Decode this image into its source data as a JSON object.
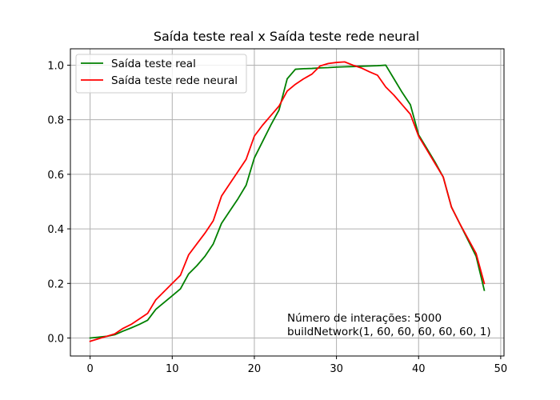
{
  "chart_data": {
    "type": "line",
    "title": "Saída teste real x Saída teste rede neural",
    "xlabel": "",
    "ylabel": "",
    "xlim": [
      -2.4,
      50.4
    ],
    "ylim": [
      -0.066,
      1.06
    ],
    "xticks": [
      0,
      10,
      20,
      30,
      40,
      50
    ],
    "yticks": [
      0.0,
      0.2,
      0.4,
      0.6,
      0.8,
      1.0
    ],
    "xtick_labels": [
      "0",
      "10",
      "20",
      "30",
      "40",
      "50"
    ],
    "ytick_labels": [
      "0.0",
      "0.2",
      "0.4",
      "0.6",
      "0.8",
      "1.0"
    ],
    "grid": true,
    "legend_position": "top-left",
    "annotations": [
      "Número de interações: 5000",
      "buildNetwork(1, 60, 60, 60, 60, 60, 1)"
    ],
    "series": [
      {
        "name": "Saída teste real",
        "color": "#008000",
        "x": [
          0,
          1,
          2,
          3,
          4,
          5,
          6,
          7,
          8,
          9,
          10,
          11,
          12,
          13,
          14,
          15,
          16,
          17,
          18,
          19,
          20,
          21,
          22,
          23,
          24,
          25,
          26,
          27,
          28,
          29,
          30,
          31,
          32,
          33,
          34,
          35,
          36,
          37,
          38,
          39,
          40,
          41,
          42,
          43,
          44,
          45,
          46,
          47,
          48
        ],
        "y": [
          0.0,
          0.003,
          0.006,
          0.012,
          0.025,
          0.037,
          0.05,
          0.065,
          0.105,
          0.13,
          0.155,
          0.18,
          0.235,
          0.265,
          0.3,
          0.345,
          0.42,
          0.465,
          0.51,
          0.56,
          0.66,
          0.72,
          0.78,
          0.835,
          0.95,
          0.985,
          0.987,
          0.988,
          0.99,
          0.991,
          0.993,
          0.994,
          0.995,
          0.996,
          0.997,
          0.998,
          1.0,
          0.95,
          0.9,
          0.855,
          0.745,
          0.695,
          0.645,
          0.59,
          0.48,
          0.42,
          0.36,
          0.3,
          0.175
        ]
      },
      {
        "name": "Saída teste rede neural",
        "color": "#ff0000",
        "x": [
          0,
          1,
          2,
          3,
          4,
          5,
          6,
          7,
          8,
          9,
          10,
          11,
          12,
          13,
          14,
          15,
          16,
          17,
          18,
          19,
          20,
          21,
          22,
          23,
          24,
          25,
          26,
          27,
          28,
          29,
          30,
          31,
          32,
          33,
          34,
          35,
          36,
          37,
          38,
          39,
          40,
          41,
          42,
          43,
          44,
          45,
          46,
          47,
          48
        ],
        "y": [
          -0.012,
          -0.003,
          0.006,
          0.015,
          0.035,
          0.05,
          0.07,
          0.09,
          0.14,
          0.17,
          0.2,
          0.23,
          0.305,
          0.345,
          0.385,
          0.43,
          0.52,
          0.565,
          0.61,
          0.655,
          0.74,
          0.78,
          0.815,
          0.85,
          0.905,
          0.93,
          0.95,
          0.967,
          0.997,
          1.006,
          1.01,
          1.012,
          1.0,
          0.99,
          0.976,
          0.963,
          0.92,
          0.89,
          0.855,
          0.82,
          0.74,
          0.69,
          0.64,
          0.59,
          0.48,
          0.42,
          0.365,
          0.31,
          0.2
        ]
      }
    ]
  }
}
